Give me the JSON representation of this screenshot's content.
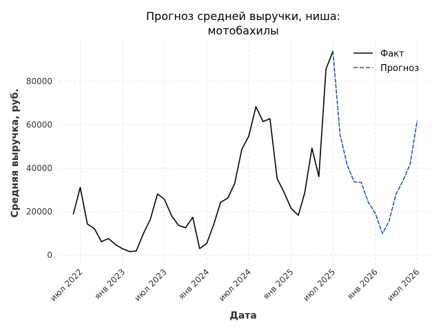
{
  "chart_data": {
    "type": "line",
    "title_lines": [
      "Прогноз средней выручки, ниша:",
      "мотобахилы"
    ],
    "xlabel": "Дата",
    "ylabel": "Средняя выручка, руб.",
    "x_range": [
      "2022-04-01",
      "2026-09-01"
    ],
    "ylim": [
      -5000,
      99000
    ],
    "y_ticks": [
      0,
      20000,
      40000,
      60000,
      80000
    ],
    "x_ticks": [
      {
        "date": "2022-07-01",
        "label": "июл 2022"
      },
      {
        "date": "2023-01-01",
        "label": "янв 2023"
      },
      {
        "date": "2023-07-01",
        "label": "июл 2023"
      },
      {
        "date": "2024-01-01",
        "label": "янв 2024"
      },
      {
        "date": "2024-07-01",
        "label": "июл 2024"
      },
      {
        "date": "2025-01-01",
        "label": "янв 2025"
      },
      {
        "date": "2025-07-01",
        "label": "июл 2025"
      },
      {
        "date": "2026-01-01",
        "label": "янв 2026"
      },
      {
        "date": "2026-07-01",
        "label": "июл 2026"
      }
    ],
    "grid": true,
    "legend_position": "top-right",
    "series": [
      {
        "name": "Факт",
        "color": "#000000",
        "style": "solid",
        "points": [
          {
            "x": "2022-06-01",
            "y": 19000
          },
          {
            "x": "2022-07-01",
            "y": 31200
          },
          {
            "x": "2022-08-01",
            "y": 14400
          },
          {
            "x": "2022-09-01",
            "y": 12200
          },
          {
            "x": "2022-10-01",
            "y": 6300
          },
          {
            "x": "2022-11-01",
            "y": 7700
          },
          {
            "x": "2022-12-01",
            "y": 4900
          },
          {
            "x": "2023-01-01",
            "y": 3000
          },
          {
            "x": "2023-02-01",
            "y": 1700
          },
          {
            "x": "2023-03-01",
            "y": 2000
          },
          {
            "x": "2023-04-01",
            "y": 10000
          },
          {
            "x": "2023-05-01",
            "y": 16500
          },
          {
            "x": "2023-06-01",
            "y": 28200
          },
          {
            "x": "2023-07-01",
            "y": 25800
          },
          {
            "x": "2023-08-01",
            "y": 18200
          },
          {
            "x": "2023-09-01",
            "y": 13700
          },
          {
            "x": "2023-10-01",
            "y": 12700
          },
          {
            "x": "2023-11-01",
            "y": 17500
          },
          {
            "x": "2023-12-01",
            "y": 3100
          },
          {
            "x": "2024-01-01",
            "y": 5500
          },
          {
            "x": "2024-02-01",
            "y": 14500
          },
          {
            "x": "2024-03-01",
            "y": 24400
          },
          {
            "x": "2024-04-01",
            "y": 26300
          },
          {
            "x": "2024-05-01",
            "y": 33000
          },
          {
            "x": "2024-06-01",
            "y": 48800
          },
          {
            "x": "2024-07-01",
            "y": 54800
          },
          {
            "x": "2024-08-01",
            "y": 68300
          },
          {
            "x": "2024-09-01",
            "y": 61500
          },
          {
            "x": "2024-10-01",
            "y": 62800
          },
          {
            "x": "2024-11-01",
            "y": 35300
          },
          {
            "x": "2024-12-01",
            "y": 29000
          },
          {
            "x": "2025-01-01",
            "y": 21500
          },
          {
            "x": "2025-02-01",
            "y": 18400
          },
          {
            "x": "2025-03-01",
            "y": 28800
          },
          {
            "x": "2025-04-01",
            "y": 49300
          },
          {
            "x": "2025-05-01",
            "y": 36200
          },
          {
            "x": "2025-06-01",
            "y": 85600
          },
          {
            "x": "2025-07-01",
            "y": 93800
          }
        ]
      },
      {
        "name": "Прогноз",
        "color": "#1f4fc8",
        "style": "dashed",
        "points": [
          {
            "x": "2025-07-01",
            "y": 93800
          },
          {
            "x": "2025-08-01",
            "y": 55500
          },
          {
            "x": "2025-09-01",
            "y": 41500
          },
          {
            "x": "2025-10-01",
            "y": 33800
          },
          {
            "x": "2025-11-01",
            "y": 33500
          },
          {
            "x": "2025-12-01",
            "y": 24500
          },
          {
            "x": "2026-01-01",
            "y": 19300
          },
          {
            "x": "2026-02-01",
            "y": 10000
          },
          {
            "x": "2026-03-01",
            "y": 15500
          },
          {
            "x": "2026-04-01",
            "y": 28200
          },
          {
            "x": "2026-05-01",
            "y": 34300
          },
          {
            "x": "2026-06-01",
            "y": 41900
          },
          {
            "x": "2026-07-01",
            "y": 61700
          }
        ]
      }
    ]
  }
}
